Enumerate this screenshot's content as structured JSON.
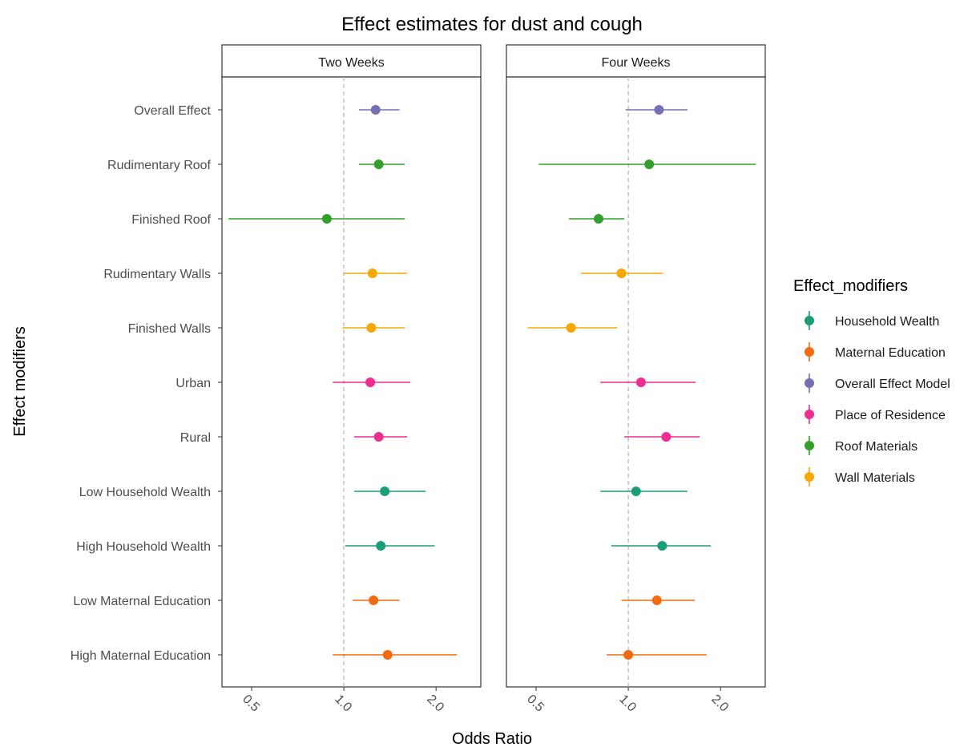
{
  "chart_data": {
    "type": "scatter",
    "subtype": "forest-plot-with-error-bars",
    "title": "Effect estimates for dust and cough",
    "xlabel": "Odds Ratio",
    "ylabel": "Effect modifiers",
    "x_scale": "log2",
    "xlim": [
      0.4,
      2.8
    ],
    "x_ticks": [
      0.5,
      1.0,
      2.0
    ],
    "x_tick_labels": [
      "0.5",
      "1.0",
      "2.0"
    ],
    "x_tick_label_rotation_deg": 45,
    "reference_line": 1.0,
    "reference_line_style": "dashed",
    "grid": false,
    "legend_placement": "right",
    "legend_title": "Effect_modifiers",
    "panels": [
      "Two Weeks",
      "Four Weeks"
    ],
    "categories": [
      "Overall Effect",
      "Rudimentary Roof",
      "Finished Roof",
      "Rudimentary Walls",
      "Finished Walls",
      "Urban",
      "Rural",
      "Low Household Wealth",
      "High Household Wealth",
      "Low Maternal Education",
      "High Maternal Education"
    ],
    "category_group": [
      "Overall Effect Model",
      "Roof Materials",
      "Roof Materials",
      "Wall Materials",
      "Wall Materials",
      "Place of Residence",
      "Place of Residence",
      "Household Wealth",
      "Household Wealth",
      "Maternal Education",
      "Maternal Education"
    ],
    "groups": [
      {
        "name": "Household Wealth",
        "color": "#1b9e77"
      },
      {
        "name": "Maternal Education",
        "color": "#f26b10"
      },
      {
        "name": "Overall Effect Model",
        "color": "#7570b3"
      },
      {
        "name": "Place of Residence",
        "color": "#ee2e91"
      },
      {
        "name": "Roof Materials",
        "color": "#33a02c"
      },
      {
        "name": "Wall Materials",
        "color": "#f6a800"
      }
    ],
    "series": [
      {
        "panel": "Two Weeks",
        "estimates": [
          1.27,
          1.3,
          0.88,
          1.24,
          1.23,
          1.22,
          1.3,
          1.36,
          1.32,
          1.25,
          1.39
        ],
        "lower": [
          1.12,
          1.12,
          0.42,
          1.0,
          0.99,
          0.92,
          1.08,
          1.08,
          1.01,
          1.07,
          0.92
        ],
        "upper": [
          1.52,
          1.58,
          1.58,
          1.61,
          1.58,
          1.65,
          1.61,
          1.85,
          1.98,
          1.52,
          2.34
        ]
      },
      {
        "panel": "Four Weeks",
        "estimates": [
          1.26,
          1.17,
          0.8,
          0.95,
          0.65,
          1.1,
          1.33,
          1.06,
          1.29,
          1.24,
          1.0
        ],
        "lower": [
          0.98,
          0.51,
          0.64,
          0.7,
          0.47,
          0.81,
          0.97,
          0.81,
          0.88,
          0.95,
          0.85
        ],
        "upper": [
          1.56,
          2.61,
          0.97,
          1.3,
          0.92,
          1.66,
          1.71,
          1.56,
          1.86,
          1.65,
          1.8
        ]
      }
    ]
  }
}
